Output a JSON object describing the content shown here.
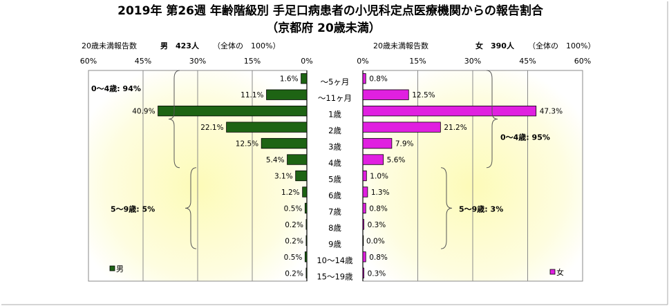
{
  "chart_data": {
    "type": "bar",
    "orientation": "horizontal-butterfly",
    "title_line1": "2019年 第26週 年齢階級別 手足口病患者の小児科定点医療機関からの報告割合",
    "title_line2": "（京都府 20歳未満）",
    "categories": [
      "～5ヶ月",
      "～11ヶ月",
      "1歳",
      "2歳",
      "3歳",
      "4歳",
      "5歳",
      "6歳",
      "7歳",
      "8歳",
      "9歳",
      "10～14歳",
      "15～19歳"
    ],
    "x_ticks": [
      "60%",
      "45%",
      "30%",
      "15%",
      "0%"
    ],
    "x_ticks_right": [
      "0%",
      "15%",
      "30%",
      "45%",
      "60%"
    ],
    "xlim": [
      0,
      60
    ],
    "grid": true,
    "series": [
      {
        "name": "男",
        "side": "left",
        "color": "#1e6414",
        "header_prefix": "20歳未満報告数",
        "header_count": "男　423人",
        "header_total": "（全体の　100%）",
        "values": [
          1.6,
          11.1,
          40.9,
          22.1,
          12.5,
          5.4,
          3.1,
          1.2,
          0.5,
          0.2,
          0.2,
          0.5,
          0.2
        ],
        "labels": [
          "1.6%",
          "11.1%",
          "40.9%",
          "22.1%",
          "12.5%",
          "5.4%",
          "3.1%",
          "1.2%",
          "0.5%",
          "0.2%",
          "0.2%",
          "0.5%",
          "0.2%"
        ],
        "groups": [
          {
            "label": "0～4歳: 94%",
            "from": 0,
            "to": 5
          },
          {
            "label": "5～9歳: 5%",
            "from": 6,
            "to": 10
          }
        ]
      },
      {
        "name": "女",
        "side": "right",
        "color": "#e020e0",
        "header_prefix": "20歳未満報告数",
        "header_count": "女　390人",
        "header_total": "（全体の　100%）",
        "values": [
          0.8,
          12.5,
          47.3,
          21.2,
          7.9,
          5.6,
          1.0,
          1.3,
          0.8,
          0.3,
          0.0,
          0.8,
          0.3
        ],
        "labels": [
          "0.8%",
          "12.5%",
          "47.3%",
          "21.2%",
          "7.9%",
          "5.6%",
          "1.0%",
          "1.3%",
          "0.8%",
          "0.3%",
          "0.0%",
          "0.8%",
          "0.3%"
        ],
        "groups": [
          {
            "label": "0～4歳: 95%",
            "from": 0,
            "to": 5
          },
          {
            "label": "5～9歳: 3%",
            "from": 6,
            "to": 10
          }
        ]
      }
    ]
  }
}
